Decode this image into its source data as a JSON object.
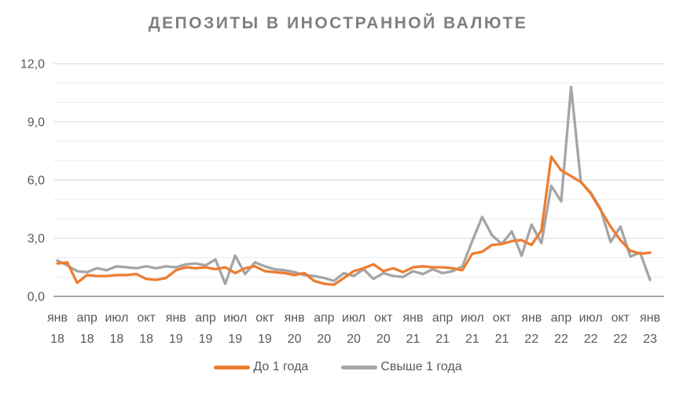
{
  "chart": {
    "title": "ДЕПОЗИТЫ В ИНОСТРАННОЙ ВАЛЮТЕ"
  },
  "chart_data": {
    "type": "line",
    "title": "ДЕПОЗИТЫ В ИНОСТРАННОЙ ВАЛЮТЕ",
    "xlabel": "",
    "ylabel": "",
    "ylim": [
      0,
      12
    ],
    "grid": "horizontal; minor every 1.0 (light), major every 3.0 (darker), zero axis darkest",
    "legend_position": "bottom-center",
    "x_unit": "monthly points from Jan 2018 to Jan 2023 (61 points)",
    "y_ticks": [
      {
        "value": 0,
        "label": "0,0"
      },
      {
        "value": 3,
        "label": "3,0"
      },
      {
        "value": 6,
        "label": "6,0"
      },
      {
        "value": 9,
        "label": "9,0"
      },
      {
        "value": 12,
        "label": "12,0"
      }
    ],
    "x_tick_labels": [
      {
        "month": "янв",
        "year": "18"
      },
      {
        "month": "апр",
        "year": "18"
      },
      {
        "month": "июл",
        "year": "18"
      },
      {
        "month": "окт",
        "year": "18"
      },
      {
        "month": "янв",
        "year": "19"
      },
      {
        "month": "апр",
        "year": "19"
      },
      {
        "month": "июл",
        "year": "19"
      },
      {
        "month": "окт",
        "year": "19"
      },
      {
        "month": "янв",
        "year": "20"
      },
      {
        "month": "апр",
        "year": "20"
      },
      {
        "month": "июл",
        "year": "20"
      },
      {
        "month": "окт",
        "year": "20"
      },
      {
        "month": "янв",
        "year": "21"
      },
      {
        "month": "апр",
        "year": "21"
      },
      {
        "month": "июл",
        "year": "21"
      },
      {
        "month": "окт",
        "year": "21"
      },
      {
        "month": "янв",
        "year": "22"
      },
      {
        "month": "апр",
        "year": "22"
      },
      {
        "month": "июл",
        "year": "22"
      },
      {
        "month": "окт",
        "year": "22"
      },
      {
        "month": "янв",
        "year": "23"
      }
    ],
    "series": [
      {
        "name": "До 1 года",
        "color": "#ED7D31",
        "values": [
          1.7,
          1.75,
          0.7,
          1.1,
          1.05,
          1.05,
          1.1,
          1.1,
          1.15,
          0.9,
          0.85,
          0.95,
          1.35,
          1.5,
          1.45,
          1.5,
          1.4,
          1.5,
          1.2,
          1.45,
          1.55,
          1.3,
          1.25,
          1.2,
          1.1,
          1.2,
          0.8,
          0.65,
          0.6,
          0.95,
          1.3,
          1.45,
          1.65,
          1.3,
          1.45,
          1.25,
          1.5,
          1.55,
          1.5,
          1.5,
          1.45,
          1.35,
          2.2,
          2.3,
          2.65,
          2.7,
          2.85,
          2.9,
          2.65,
          3.4,
          7.2,
          6.5,
          6.2,
          5.9,
          5.3,
          4.45,
          3.6,
          2.9,
          2.35,
          2.2,
          2.25
        ]
      },
      {
        "name": "Свыше 1 года",
        "color": "#A5A5A5",
        "values": [
          1.85,
          1.6,
          1.3,
          1.25,
          1.45,
          1.35,
          1.55,
          1.5,
          1.45,
          1.55,
          1.45,
          1.55,
          1.5,
          1.65,
          1.7,
          1.6,
          1.9,
          0.65,
          2.1,
          1.15,
          1.75,
          1.55,
          1.4,
          1.35,
          1.25,
          1.1,
          1.05,
          0.95,
          0.8,
          1.2,
          1.05,
          1.4,
          0.9,
          1.2,
          1.05,
          1.0,
          1.3,
          1.15,
          1.4,
          1.2,
          1.3,
          1.55,
          2.85,
          4.1,
          3.15,
          2.7,
          3.35,
          2.1,
          3.7,
          2.75,
          5.7,
          4.9,
          10.8,
          5.9,
          5.35,
          4.5,
          2.8,
          3.6,
          2.05,
          2.25,
          0.85
        ]
      }
    ]
  },
  "colors": {
    "title": "#7F7F7F",
    "axis_labels": "#595959",
    "grid_minor": "#EBEBEB",
    "grid_major": "#D5D5D5",
    "zero_axis": "#A8A8A8",
    "series_short_term": "#ED7D31",
    "series_long_term": "#A5A5A5",
    "background": "#FFFFFF"
  }
}
